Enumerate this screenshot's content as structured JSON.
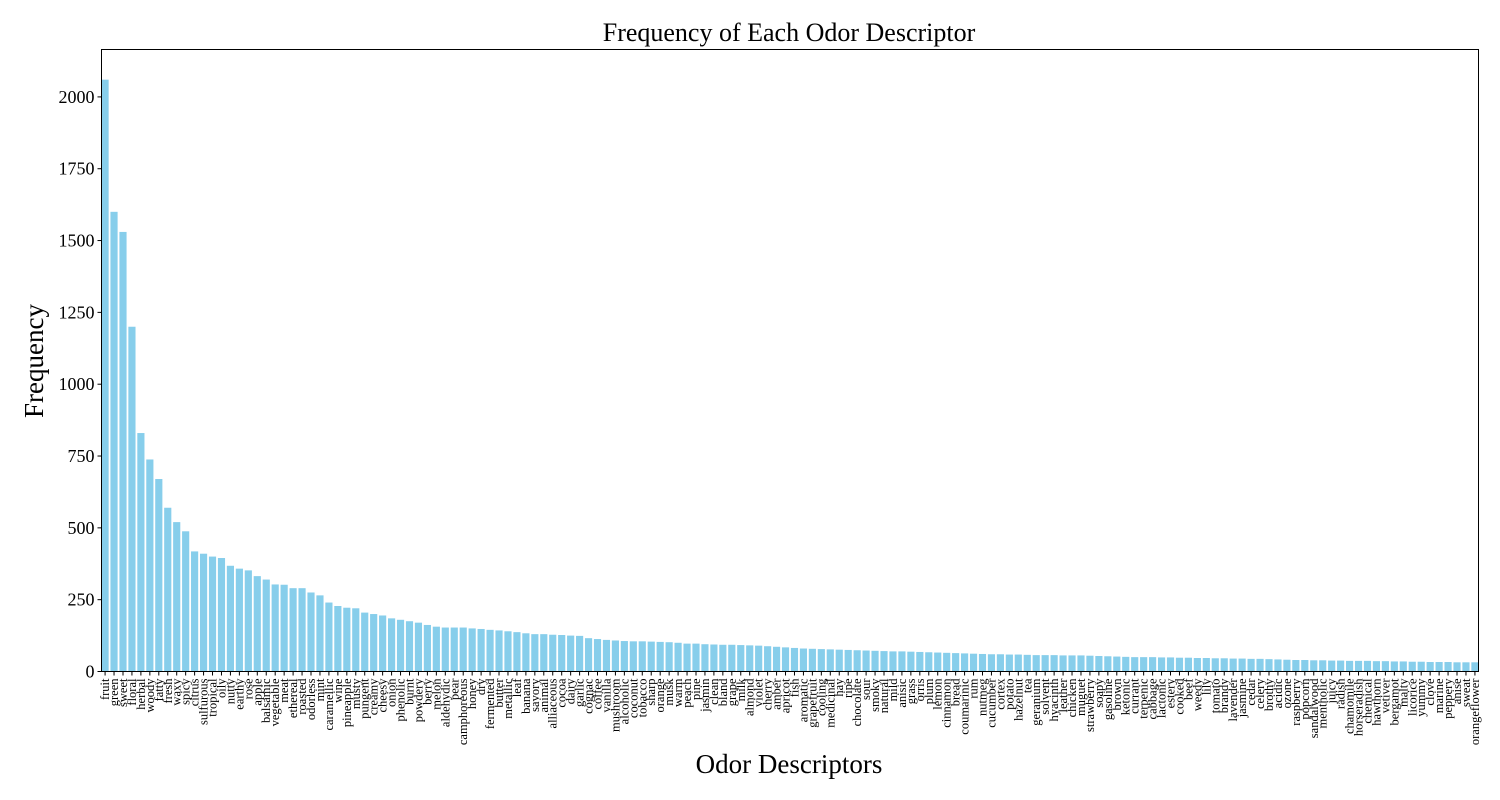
{
  "chart_data": {
    "type": "bar",
    "title": "Frequency of Each Odor Descriptor",
    "xlabel": "Odor Descriptors",
    "ylabel": "Frequency",
    "ylim": [
      0,
      2165
    ],
    "yticks": [
      0,
      250,
      500,
      750,
      1000,
      1250,
      1500,
      1750,
      2000
    ],
    "grid": false,
    "legend": "none",
    "bar_color": "#87CEEB",
    "categories": [
      "fruit",
      "green",
      "sweet",
      "floral",
      "herbal",
      "woody",
      "fatty",
      "fresh",
      "waxy",
      "spicy",
      "citrus",
      "sulfurous",
      "tropical",
      "oily",
      "nutty",
      "earthy",
      "rose",
      "apple",
      "balsamic",
      "vegetable",
      "meat",
      "ethereal",
      "roasted",
      "odorless",
      "mint",
      "caramellic",
      "wine",
      "pineapple",
      "musty",
      "pungent",
      "creamy",
      "cheesy",
      "onion",
      "phenolic",
      "burnt",
      "powdery",
      "berry",
      "melon",
      "aldehydic",
      "pear",
      "camphoreous",
      "honey",
      "dry",
      "fermented",
      "butter",
      "metallic",
      "leaf",
      "banana",
      "savory",
      "animal",
      "alliaceous",
      "cocoa",
      "dairy",
      "garlic",
      "cognac",
      "coffee",
      "vanilla",
      "mushroom",
      "alcoholic",
      "coconut",
      "tobacco",
      "sharp",
      "orange",
      "musk",
      "warm",
      "peach",
      "pine",
      "jasmin",
      "clean",
      "bland",
      "grape",
      "milk",
      "almond",
      "violet",
      "cherry",
      "amber",
      "apricot",
      "fish",
      "aromatic",
      "grapefruit",
      "cooling",
      "medicinal",
      "hay",
      "ripe",
      "chocolate",
      "sour",
      "smoky",
      "natural",
      "mild",
      "anisic",
      "grass",
      "orris",
      "plum",
      "lemon",
      "cinnamon",
      "bread",
      "coumarinic",
      "rum",
      "nutmeg",
      "cucumber",
      "cortex",
      "potato",
      "hazelnut",
      "tea",
      "geranium",
      "solvent",
      "hyacinth",
      "leather",
      "chicken",
      "muguet",
      "strawberry",
      "soapy",
      "gasoline",
      "brown",
      "ketonic",
      "currant",
      "terpenic",
      "cabbage",
      "lactonic",
      "estery",
      "cooked",
      "beef",
      "weedy",
      "lily",
      "tomato",
      "brandy",
      "lavender",
      "jasmine",
      "cedar",
      "celery",
      "brothy",
      "acidic",
      "ozone",
      "raspberry",
      "popcorn",
      "sandalwood",
      "mentholic",
      "juicy",
      "radish",
      "chamomile",
      "horseradish",
      "chemical",
      "hawthorn",
      "vetiver",
      "bergamot",
      "malty",
      "licorice",
      "yummy",
      "clove",
      "marine",
      "peppery",
      "anise",
      "sweat",
      "orangeflower"
    ],
    "values": [
      2060,
      1600,
      1530,
      1200,
      830,
      738,
      670,
      570,
      520,
      488,
      418,
      410,
      400,
      395,
      368,
      358,
      352,
      332,
      320,
      303,
      302,
      290,
      290,
      275,
      265,
      240,
      228,
      222,
      220,
      205,
      200,
      195,
      185,
      180,
      175,
      170,
      162,
      156,
      153,
      153,
      153,
      150,
      148,
      145,
      143,
      140,
      137,
      133,
      130,
      130,
      128,
      127,
      125,
      124,
      116,
      113,
      110,
      108,
      106,
      105,
      105,
      104,
      103,
      102,
      100,
      97,
      97,
      95,
      94,
      93,
      93,
      92,
      91,
      90,
      88,
      86,
      84,
      82,
      80,
      79,
      78,
      77,
      76,
      75,
      74,
      73,
      72,
      71,
      70,
      70,
      69,
      68,
      67,
      66,
      65,
      64,
      63,
      62,
      61,
      60,
      60,
      59,
      59,
      58,
      57,
      57,
      57,
      56,
      56,
      56,
      55,
      54,
      53,
      52,
      51,
      50,
      50,
      50,
      49,
      49,
      48,
      48,
      47,
      47,
      46,
      46,
      45,
      45,
      44,
      44,
      43,
      42,
      41,
      40,
      40,
      39,
      39,
      38,
      38,
      37,
      37,
      37,
      36,
      36,
      35,
      35,
      34,
      34,
      33,
      33,
      33,
      32,
      32,
      32
    ]
  }
}
